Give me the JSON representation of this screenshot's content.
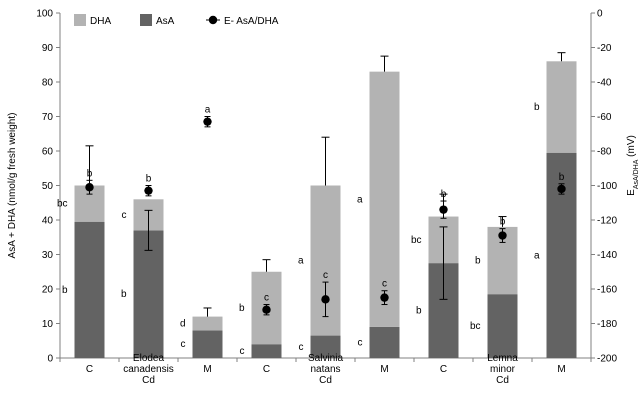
{
  "chart_data": {
    "type": "bar",
    "stacked": true,
    "categories": [
      "C",
      "Cd",
      "M",
      "C",
      "Cd",
      "M",
      "C",
      "Cd",
      "M"
    ],
    "groups": [
      {
        "name": "Elodea canadensis",
        "label_lines": [
          "Elodea",
          "canadensis"
        ]
      },
      {
        "name": "Salvinia natans",
        "label_lines": [
          "Salvinia",
          "natans"
        ]
      },
      {
        "name": "Lemna minor",
        "label_lines": [
          "Lemna",
          "minor"
        ]
      }
    ],
    "series": [
      {
        "name": "AsA",
        "values": [
          39.5,
          37,
          8,
          4,
          6.5,
          9,
          27.5,
          18.5,
          59.5
        ],
        "error": [
          null,
          5.8,
          null,
          null,
          null,
          null,
          10.5,
          null,
          null
        ],
        "letters": [
          "b",
          "b",
          "c",
          "c",
          "c",
          "c",
          "b",
          "bc",
          "a"
        ]
      },
      {
        "name": "DHA",
        "values": [
          10.5,
          9,
          4,
          21,
          43.5,
          74,
          13.5,
          19.5,
          26.5
        ],
        "error": [
          11.5,
          null,
          2.5,
          3.5,
          14,
          4.5,
          6.5,
          3,
          2.5
        ],
        "letters": [
          "bc",
          "c",
          "d",
          "b",
          "a",
          "a",
          "bc",
          "b",
          "b"
        ]
      },
      {
        "name": "E- AsA/DHA",
        "axis": "right",
        "values": [
          -101,
          -103,
          -63,
          -172,
          -166,
          -165,
          -114,
          -129,
          -102
        ],
        "error": [
          4,
          3,
          3,
          3,
          10,
          4,
          5,
          4,
          3
        ],
        "letters": [
          "b",
          "b",
          "a",
          "c",
          "c",
          "c",
          "b",
          "b",
          "b"
        ]
      }
    ],
    "ylabel": "AsA + DHA (nmol/g fresh weight)",
    "y2label": "E",
    "y2label_sub": "AsA/DHA",
    "y2label_unit": "(mV)",
    "ylim": [
      0,
      100
    ],
    "yticks": [
      "0",
      "10",
      "20",
      "30",
      "40",
      "50",
      "60",
      "70",
      "80",
      "90",
      "100"
    ],
    "y2lim": [
      -200,
      0
    ],
    "y2ticks": [
      "-200",
      "-180",
      "-160",
      "-140",
      "-120",
      "-100",
      "-80",
      "-60",
      "-40",
      "-20",
      "0"
    ],
    "legend": {
      "position": "top-left",
      "entries": [
        "DHA",
        "AsA",
        "E- AsA/DHA"
      ]
    },
    "colors": {
      "DHA": "#b3b3b3",
      "AsA": "#636363",
      "marker": "#000000",
      "axis": "#808080"
    },
    "grid": false
  }
}
